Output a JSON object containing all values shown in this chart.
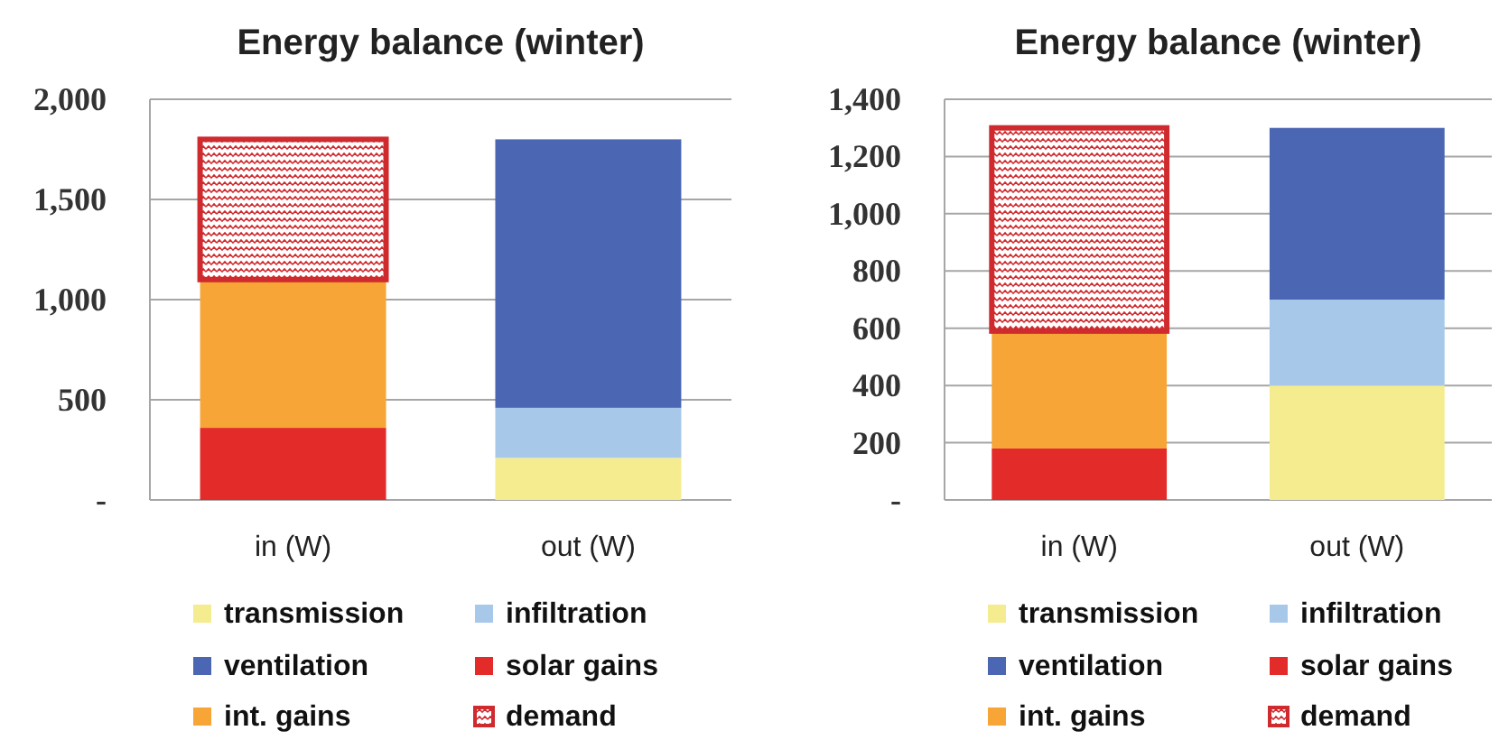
{
  "chart_data": [
    {
      "type": "bar",
      "stacked": true,
      "title": "Energy balance (winter)",
      "categories": [
        "in (W)",
        "out (W)"
      ],
      "series": [
        {
          "name": "transmission",
          "color": "#f4ec8e",
          "values": [
            null,
            210
          ]
        },
        {
          "name": "infiltration",
          "color": "#a8c8ea",
          "values": [
            null,
            250
          ]
        },
        {
          "name": "ventilation",
          "color": "#4b66b3",
          "values": [
            null,
            1340
          ]
        },
        {
          "name": "solar gains",
          "color": "#e32b2a",
          "values": [
            360,
            null
          ]
        },
        {
          "name": "int. gains",
          "color": "#f6a536",
          "values": [
            740,
            null
          ]
        },
        {
          "name": "demand",
          "color": "#cf2a2e",
          "values": [
            700,
            null
          ]
        }
      ],
      "ylim": [
        0,
        2000
      ],
      "yticks": [
        {
          "value": 0,
          "label": "-"
        },
        500,
        {
          "value": 1000,
          "label": "1,000"
        },
        {
          "value": 1500,
          "label": "1,500"
        },
        {
          "value": 2000,
          "label": "2,000"
        }
      ],
      "grid": "y",
      "legend": "bottom"
    },
    {
      "type": "bar",
      "stacked": true,
      "title": "Energy balance (winter)",
      "categories": [
        "in (W)",
        "out (W)"
      ],
      "series": [
        {
          "name": "transmission",
          "color": "#f4ec8e",
          "values": [
            null,
            400
          ]
        },
        {
          "name": "infiltration",
          "color": "#a8c8ea",
          "values": [
            null,
            300
          ]
        },
        {
          "name": "ventilation",
          "color": "#4b66b3",
          "values": [
            null,
            600
          ]
        },
        {
          "name": "solar gains",
          "color": "#e32b2a",
          "values": [
            180,
            null
          ]
        },
        {
          "name": "int. gains",
          "color": "#f6a536",
          "values": [
            410,
            null
          ]
        },
        {
          "name": "demand",
          "color": "#cf2a2e",
          "values": [
            710,
            null
          ]
        }
      ],
      "ylim": [
        0,
        1400
      ],
      "yticks": [
        {
          "value": 0,
          "label": "-"
        },
        200,
        400,
        600,
        800,
        {
          "value": 1000,
          "label": "1,000"
        },
        {
          "value": 1200,
          "label": "1,200"
        },
        {
          "value": 1400,
          "label": "1,400"
        }
      ],
      "grid": "y",
      "legend": "bottom"
    }
  ]
}
